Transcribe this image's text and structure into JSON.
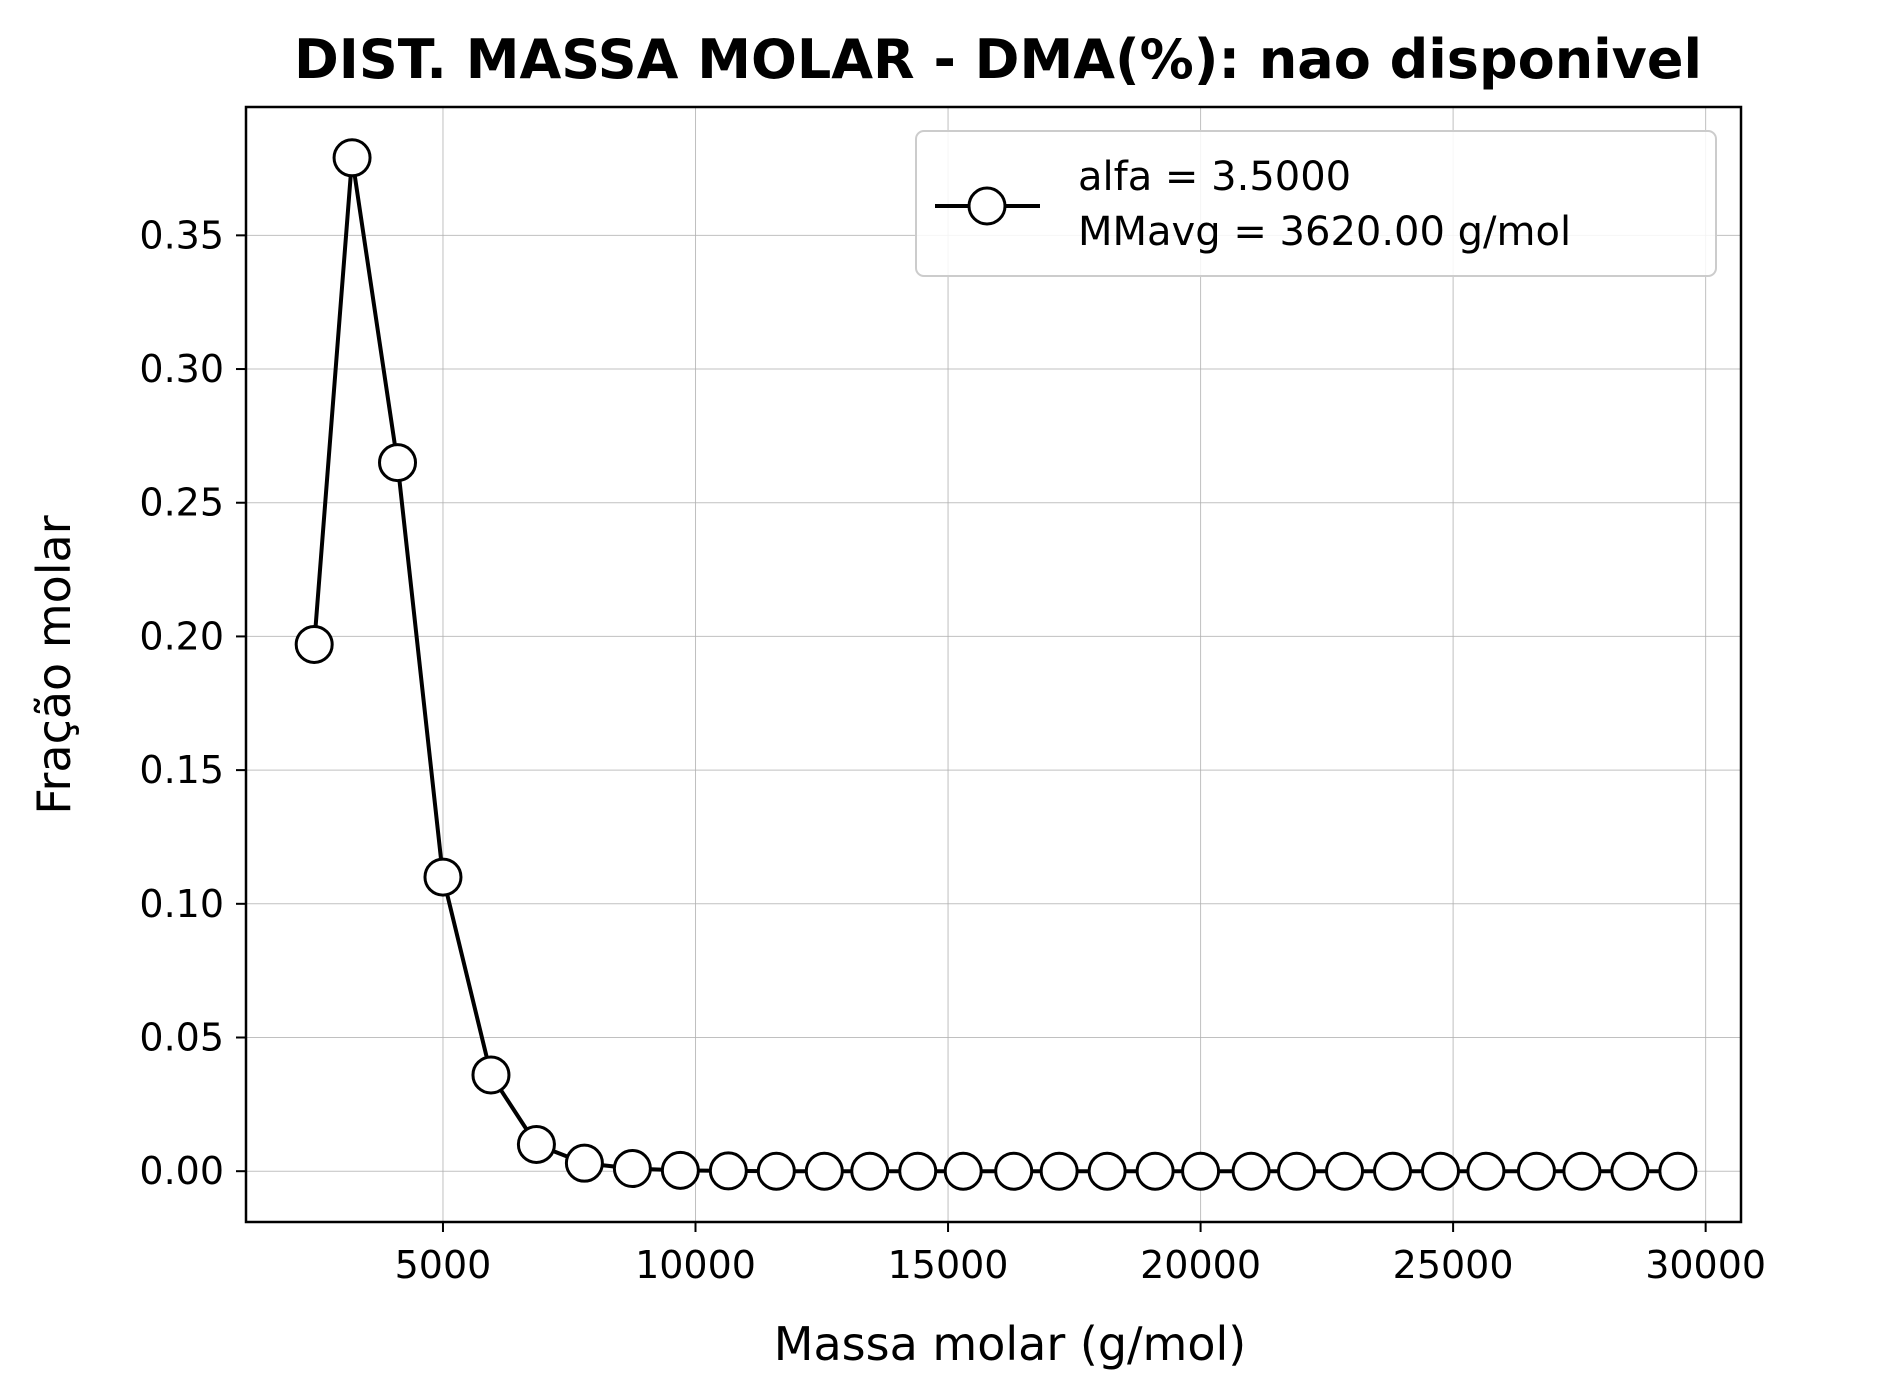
{
  "chart_data": {
    "type": "line",
    "title": "DIST. MASSA MOLAR - DMA(%): nao disponivel",
    "xlabel": "Massa molar (g/mol)",
    "ylabel": "Fração molar",
    "xlim": [
      1100,
      30700
    ],
    "ylim": [
      -0.019,
      0.398
    ],
    "xticks": [
      5000,
      10000,
      15000,
      20000,
      25000,
      30000
    ],
    "yticks": [
      0.0,
      0.05,
      0.1,
      0.15,
      0.2,
      0.25,
      0.3,
      0.35
    ],
    "xtick_labels": [
      "5000",
      "10000",
      "15000",
      "20000",
      "25000",
      "30000"
    ],
    "ytick_labels": [
      "0.00",
      "0.05",
      "0.10",
      "0.15",
      "0.20",
      "0.25",
      "0.30",
      "0.35"
    ],
    "grid": true,
    "legend_position": "top-right",
    "legend_lines": [
      "alfa = 3.5000",
      "MMavg = 3620.00 g/mol"
    ],
    "series": [
      {
        "line_color": "#000000",
        "marker": "circle",
        "marker_fill": "#ffffff",
        "x": [
          2450,
          3200,
          4100,
          5000,
          5950,
          6850,
          7800,
          8750,
          9700,
          10650,
          11600,
          12550,
          13450,
          14400,
          15300,
          16300,
          17200,
          18150,
          19100,
          20000,
          21000,
          21900,
          22850,
          23800,
          24750,
          25650,
          26650,
          27550,
          28500,
          29450
        ],
        "y": [
          0.197,
          0.379,
          0.265,
          0.11,
          0.036,
          0.01,
          0.003,
          0.001,
          0.0003,
          0.0001,
          0,
          0,
          0,
          0,
          0,
          0,
          0,
          0,
          0,
          0,
          0,
          0,
          0,
          0,
          0,
          0,
          0,
          0,
          0,
          0
        ]
      }
    ]
  }
}
